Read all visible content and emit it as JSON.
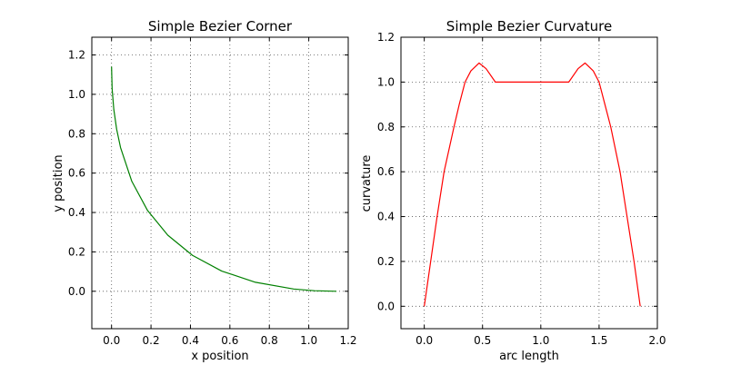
{
  "chart_data": [
    {
      "type": "line",
      "title": "Simple Bezier Corner",
      "xlabel": "x position",
      "ylabel": "y position",
      "xlim": [
        -0.1,
        1.2
      ],
      "ylim": [
        -0.19,
        1.29
      ],
      "xticks": [
        "0.0",
        "0.2",
        "0.4",
        "0.6",
        "0.8",
        "1.0",
        "1.2"
      ],
      "xtick_values": [
        0,
        0.2,
        0.4,
        0.6,
        0.8,
        1.0,
        1.2
      ],
      "yticks": [
        "0.0",
        "0.2",
        "0.4",
        "0.6",
        "0.8",
        "1.0",
        "1.2"
      ],
      "ytick_values": [
        0,
        0.2,
        0.4,
        0.6,
        0.8,
        1.0,
        1.2
      ],
      "grid": true,
      "series": [
        {
          "color": "#008000",
          "x": [
            0,
            0.00285,
            0.0114,
            0.02565,
            0.0456,
            0.1026,
            0.1824,
            0.285,
            0.4104,
            0.5586,
            0.7296,
            0.9234,
            1.0289,
            1.14
          ],
          "y": [
            1.14,
            1.0289,
            0.9234,
            0.8237,
            0.7296,
            0.5586,
            0.4104,
            0.285,
            0.1824,
            0.1026,
            0.0456,
            0.0114,
            0.00285,
            0
          ]
        }
      ]
    },
    {
      "type": "line",
      "title": "Simple Bezier Curvature",
      "xlabel": "arc length",
      "ylabel": "curvature",
      "xlim": [
        -0.2,
        2.0
      ],
      "ylim": [
        -0.1,
        1.2
      ],
      "xticks": [
        "0.0",
        "0.5",
        "1.0",
        "1.5",
        "2.0"
      ],
      "xtick_values": [
        0,
        0.5,
        1.0,
        1.5,
        2.0
      ],
      "yticks": [
        "0.0",
        "0.2",
        "0.4",
        "0.6",
        "0.8",
        "1.0",
        "1.2"
      ],
      "ytick_values": [
        0,
        0.2,
        0.4,
        0.6,
        0.8,
        1.0,
        1.2
      ],
      "grid": true,
      "series": [
        {
          "color": "#ff0000",
          "x": [
            0,
            0.055,
            0.11,
            0.17,
            0.255,
            0.3,
            0.35,
            0.4,
            0.47,
            0.53,
            0.61,
            1.24,
            1.32,
            1.38,
            1.45,
            1.5,
            1.55,
            1.6,
            1.68,
            1.74,
            1.8,
            1.853
          ],
          "y": [
            0,
            0.2,
            0.4,
            0.6,
            0.8,
            0.9,
            1.0,
            1.05,
            1.085,
            1.06,
            1.0,
            1.0,
            1.06,
            1.085,
            1.05,
            1.0,
            0.9,
            0.8,
            0.6,
            0.4,
            0.2,
            0
          ]
        }
      ]
    }
  ]
}
